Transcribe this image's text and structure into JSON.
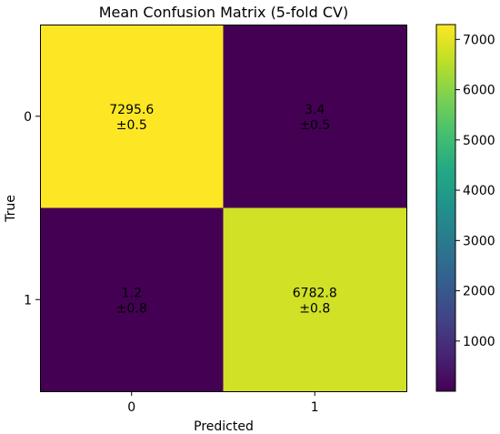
{
  "chart_data": {
    "type": "heatmap",
    "title": "Mean Confusion Matrix (5-fold CV)",
    "xlabel": "Predicted",
    "ylabel": "True",
    "x_categories": [
      "0",
      "1"
    ],
    "y_categories": [
      "0",
      "1"
    ],
    "values": [
      [
        7295.6,
        3.4
      ],
      [
        1.2,
        6782.8
      ]
    ],
    "cell_labels": [
      [
        "7295.6",
        "±0.5"
      ],
      [
        "3.4",
        "±0.5"
      ],
      [
        "1.2",
        "±0.8"
      ],
      [
        "6782.8",
        "±0.8"
      ]
    ],
    "colormap": "viridis",
    "colorbar": {
      "range": [
        1.2,
        7295.6
      ],
      "ticks": [
        1000,
        2000,
        3000,
        4000,
        5000,
        6000,
        7000
      ]
    },
    "grid": false
  }
}
